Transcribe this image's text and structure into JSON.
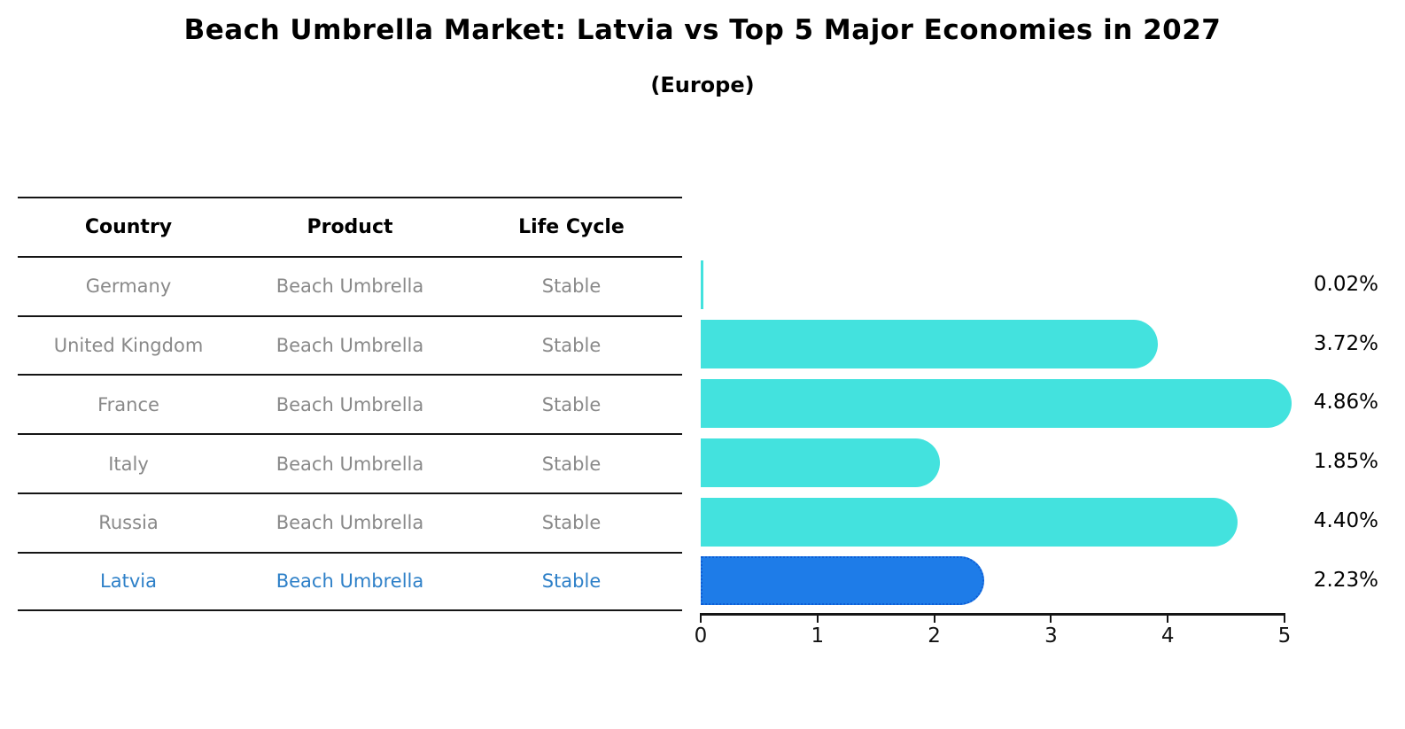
{
  "title": "Beach Umbrella Market: Latvia vs Top 5 Major Economies in 2027",
  "subtitle": "(Europe)",
  "table": {
    "headers": [
      "Country",
      "Product",
      "Life Cycle"
    ],
    "rows": [
      {
        "country": "Germany",
        "product": "Beach Umbrella",
        "life_cycle": "Stable",
        "highlighted": false
      },
      {
        "country": "United Kingdom",
        "product": "Beach Umbrella",
        "life_cycle": "Stable",
        "highlighted": false
      },
      {
        "country": "France",
        "product": "Beach Umbrella",
        "life_cycle": "Stable",
        "highlighted": false
      },
      {
        "country": "Italy",
        "product": "Beach Umbrella",
        "life_cycle": "Stable",
        "highlighted": false
      },
      {
        "country": "Russia",
        "product": "Beach Umbrella",
        "life_cycle": "Stable",
        "highlighted": false
      },
      {
        "country": "Latvia",
        "product": "Beach Umbrella",
        "life_cycle": "Stable",
        "highlighted": true
      }
    ]
  },
  "chart_data": {
    "type": "bar",
    "orientation": "horizontal",
    "title": "Beach Umbrella Market: Latvia vs Top 5 Major Economies in 2027 (Europe)",
    "categories": [
      "Germany",
      "United Kingdom",
      "France",
      "Italy",
      "Russia",
      "Latvia"
    ],
    "values": [
      0.02,
      3.72,
      4.86,
      1.85,
      4.4,
      2.23
    ],
    "value_labels": [
      "0.02%",
      "3.72%",
      "4.86%",
      "1.85%",
      "4.40%",
      "2.23%"
    ],
    "x_ticks": [
      "0",
      "1",
      "2",
      "3",
      "4",
      "5"
    ],
    "xlim": [
      0,
      5
    ],
    "grid": false,
    "legend": false,
    "highlight_index": 5
  },
  "colors": {
    "bar_default": "#43e2de",
    "bar_highlight": "#1e7ce8",
    "bar_highlight_border": "#0e5ed6",
    "row_text": "#898989",
    "header_text": "#000000",
    "highlight_text": "#2e80c8",
    "axis": "#151515"
  }
}
